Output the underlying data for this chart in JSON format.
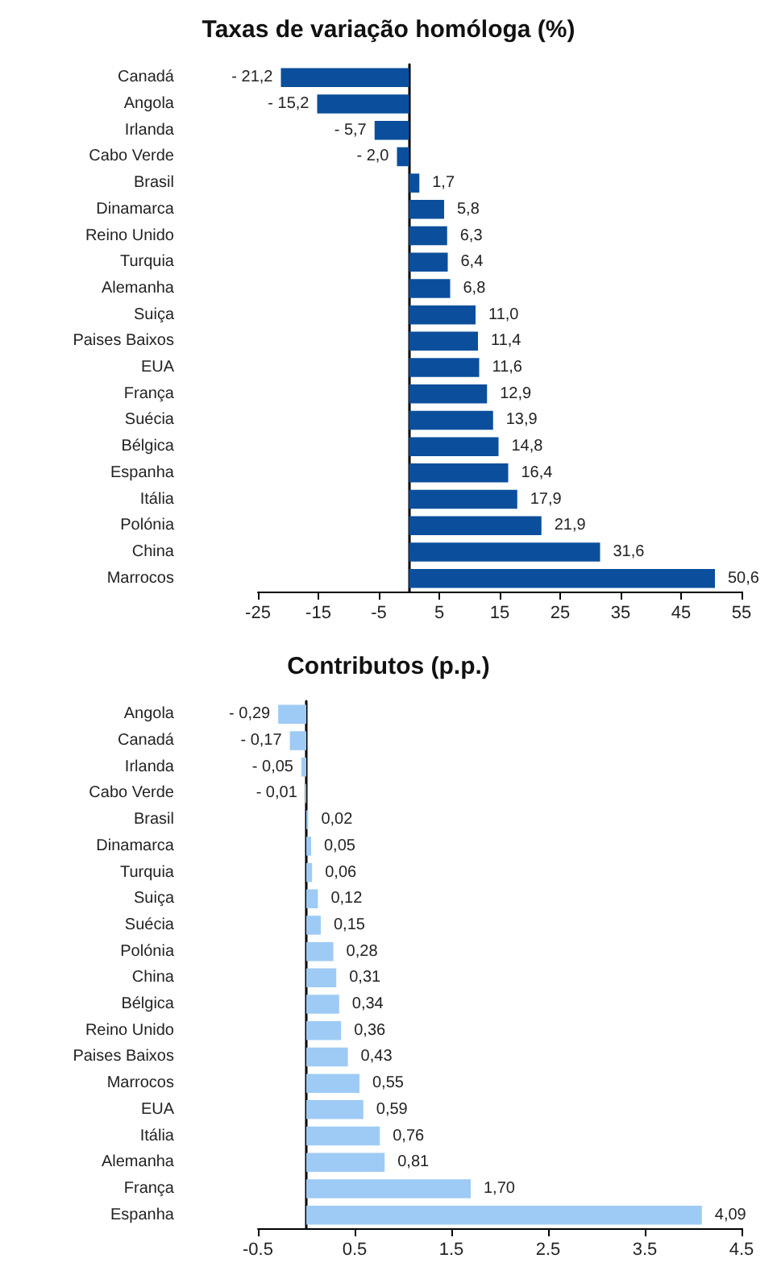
{
  "chart_data": [
    {
      "type": "bar",
      "orientation": "horizontal",
      "title": "Taxas de variação homóloga (%)",
      "categories": [
        "Canadá",
        "Angola",
        "Irlanda",
        "Cabo Verde",
        "Brasil",
        "Dinamarca",
        "Reino Unido",
        "Turquia",
        "Alemanha",
        "Suiça",
        "Paises Baixos",
        "EUA",
        "França",
        "Suécia",
        "Bélgica",
        "Espanha",
        "Itália",
        "Polónia",
        "China",
        "Marrocos"
      ],
      "values": [
        -21.2,
        -15.2,
        -5.7,
        -2.0,
        1.7,
        5.8,
        6.3,
        6.4,
        6.8,
        11.0,
        11.4,
        11.6,
        12.9,
        13.9,
        14.8,
        16.4,
        17.9,
        21.9,
        31.6,
        50.6
      ],
      "value_labels": [
        "- 21,2",
        "- 15,2",
        "- 5,7",
        "- 2,0",
        "1,7",
        "5,8",
        "6,3",
        "6,4",
        "6,8",
        "11,0",
        "11,4",
        "11,6",
        "12,9",
        "13,9",
        "14,8",
        "16,4",
        "17,9",
        "21,9",
        "31,6",
        "50,6"
      ],
      "color": "#0b4f9c",
      "xlim": [
        -25,
        55
      ],
      "xticks": [
        -25,
        -15,
        -5,
        5,
        15,
        25,
        35,
        45,
        55
      ],
      "grid": false
    },
    {
      "type": "bar",
      "orientation": "horizontal",
      "title": "Contributos (p.p.)",
      "categories": [
        "Angola",
        "Canadá",
        "Irlanda",
        "Cabo Verde",
        "Brasil",
        "Dinamarca",
        "Turquia",
        "Suiça",
        "Suécia",
        "Polónia",
        "China",
        "Bélgica",
        "Reino Unido",
        "Paises Baixos",
        "Marrocos",
        "EUA",
        "Itália",
        "Alemanha",
        "França",
        "Espanha"
      ],
      "values": [
        -0.29,
        -0.17,
        -0.05,
        -0.01,
        0.02,
        0.05,
        0.06,
        0.12,
        0.15,
        0.28,
        0.31,
        0.34,
        0.36,
        0.43,
        0.55,
        0.59,
        0.76,
        0.81,
        1.7,
        4.09
      ],
      "value_labels": [
        "- 0,29",
        "- 0,17",
        "- 0,05",
        "- 0,01",
        "0,02",
        "0,05",
        "0,06",
        "0,12",
        "0,15",
        "0,28",
        "0,31",
        "0,34",
        "0,36",
        "0,43",
        "0,55",
        "0,59",
        "0,76",
        "0,81",
        "1,70",
        "4,09"
      ],
      "color": "#9ecbf5",
      "xlim": [
        -0.5,
        4.5
      ],
      "xticks": [
        -0.5,
        0.5,
        1.5,
        2.5,
        3.5,
        4.5
      ],
      "grid": false
    }
  ]
}
